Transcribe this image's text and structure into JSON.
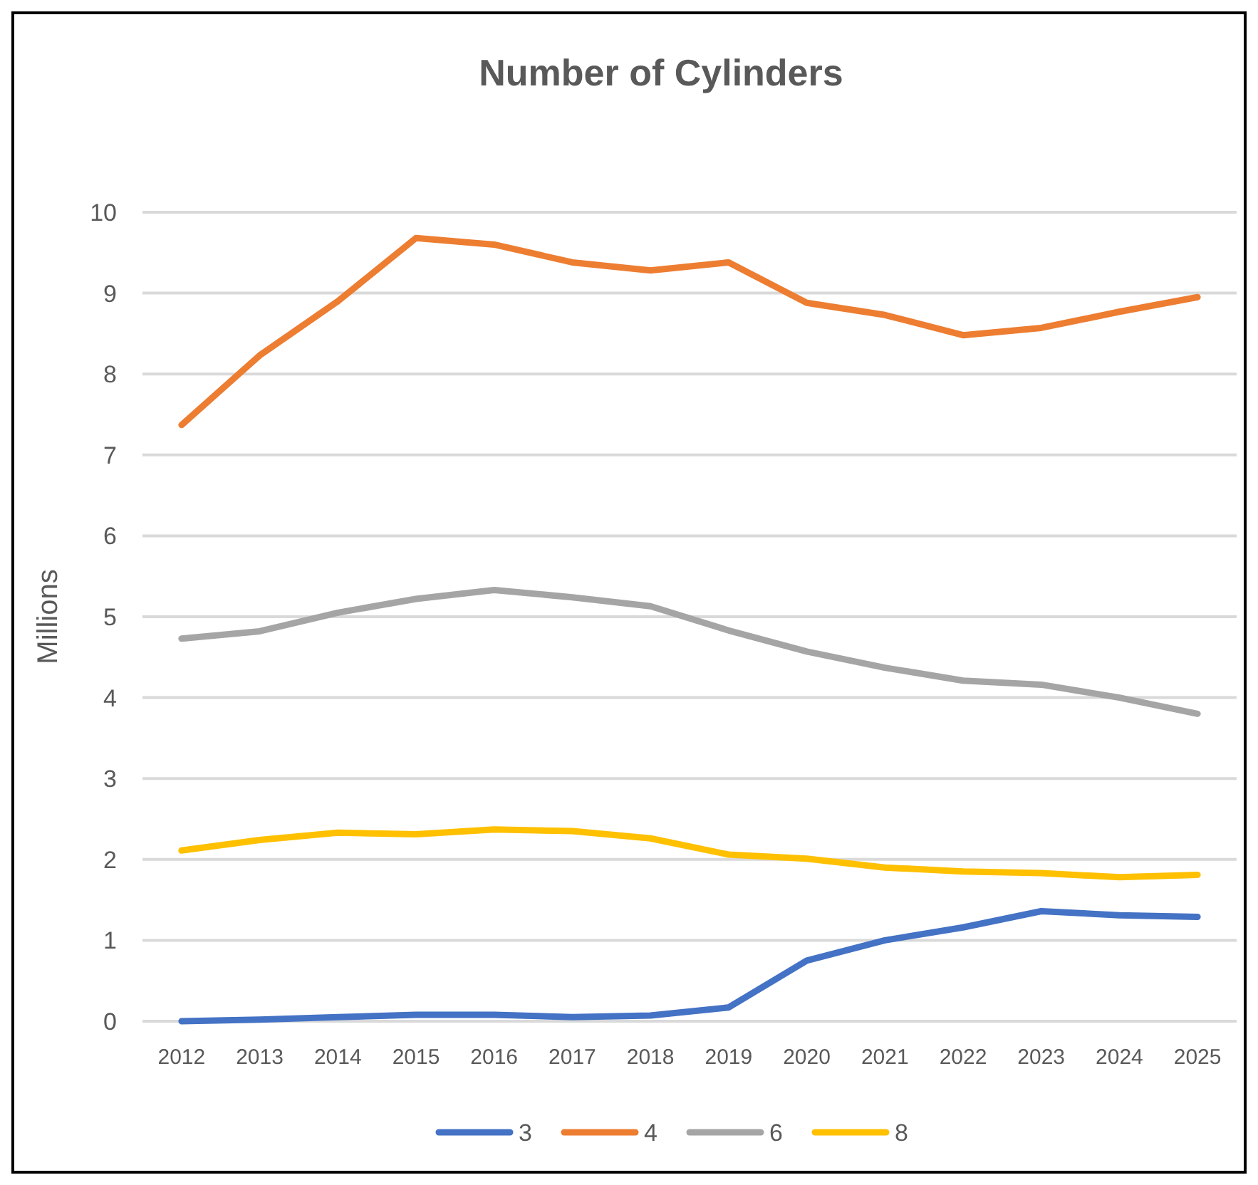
{
  "chart_data": {
    "type": "line",
    "title": "Number of Cylinders",
    "ylabel": "Millions",
    "categories": [
      "2012",
      "2013",
      "2014",
      "2015",
      "2016",
      "2017",
      "2018",
      "2019",
      "2020",
      "2021",
      "2022",
      "2023",
      "2024",
      "2025"
    ],
    "series": [
      {
        "name": "3",
        "color": "#4472c4",
        "values": [
          0.0,
          0.02,
          0.05,
          0.08,
          0.08,
          0.05,
          0.07,
          0.17,
          0.75,
          1.0,
          1.16,
          1.36,
          1.31,
          1.29
        ]
      },
      {
        "name": "4",
        "color": "#ed7d31",
        "values": [
          7.37,
          8.23,
          8.9,
          9.68,
          9.6,
          9.38,
          9.28,
          9.38,
          8.88,
          8.73,
          8.48,
          8.57,
          8.77,
          8.95
        ]
      },
      {
        "name": "6",
        "color": "#a5a5a5",
        "values": [
          4.73,
          4.82,
          5.05,
          5.22,
          5.33,
          5.24,
          5.13,
          4.83,
          4.57,
          4.37,
          4.21,
          4.16,
          4.0,
          3.8
        ]
      },
      {
        "name": "8",
        "color": "#ffc000",
        "values": [
          2.11,
          2.24,
          2.33,
          2.31,
          2.37,
          2.35,
          2.26,
          2.06,
          2.01,
          1.9,
          1.85,
          1.83,
          1.78,
          1.81
        ]
      }
    ],
    "ylim": [
      0,
      10
    ],
    "yticks": [
      0,
      1,
      2,
      3,
      4,
      5,
      6,
      7,
      8,
      9,
      10
    ],
    "grid": "y",
    "legend": "bottom",
    "marker": "none",
    "line_style": "solid"
  }
}
